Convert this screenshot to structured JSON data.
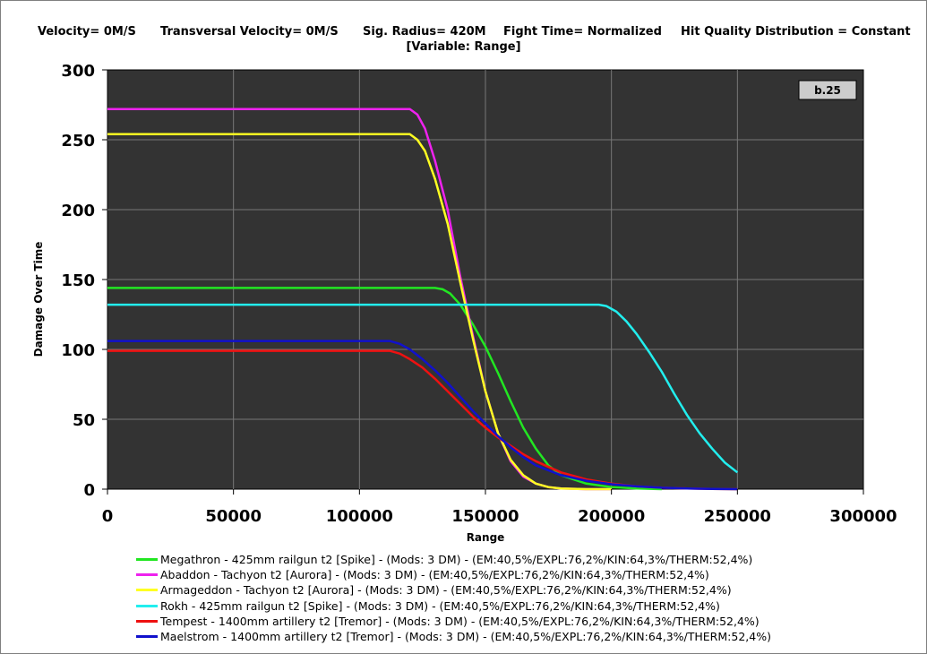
{
  "header": {
    "velocity": "Velocity= 0M/S",
    "transversal_velocity": "Transversal Velocity= 0M/S",
    "sig_radius": "Sig. Radius= 420M",
    "fight_time": "Fight Time= Normalized",
    "hit_quality": "Hit Quality Distribution = Constant",
    "subtitle": "[Variable: Range]"
  },
  "badge": "b.25",
  "chart_data": {
    "type": "line",
    "xlabel": "Range",
    "ylabel": "Damage Over Time",
    "xlim": [
      0,
      300000
    ],
    "ylim": [
      0,
      300
    ],
    "xticks": [
      0,
      50000,
      100000,
      150000,
      200000,
      250000,
      300000
    ],
    "yticks": [
      0,
      50,
      100,
      150,
      200,
      250,
      300
    ],
    "grid": true,
    "legend_position": "bottom",
    "series": [
      {
        "name": "Megathron - 425mm railgun t2 [Spike] - (Mods: 3 DM) - (EM:40,5%/EXPL:76,2%/KIN:64,3%/THERM:52,4%)",
        "color": "#22e622",
        "x": [
          0,
          130000,
          133000,
          136000,
          140000,
          145000,
          150000,
          155000,
          160000,
          165000,
          170000,
          175000,
          180000,
          190000,
          200000,
          210000,
          220000
        ],
        "y": [
          144,
          144,
          143,
          140,
          132,
          118,
          102,
          83,
          63,
          44,
          29,
          17,
          10,
          4,
          1.5,
          0.5,
          0
        ]
      },
      {
        "name": "Abaddon - Tachyon t2 [Aurora] - (Mods: 3 DM) - (EM:40,5%/EXPL:76,2%/KIN:64,3%/THERM:52,4%)",
        "color": "#ee22ee",
        "x": [
          0,
          120000,
          123000,
          126000,
          130000,
          135000,
          140000,
          145000,
          150000,
          155000,
          160000,
          165000,
          170000,
          175000,
          180000,
          190000,
          200000
        ],
        "y": [
          272,
          272,
          268,
          258,
          235,
          200,
          152,
          110,
          70,
          40,
          20,
          9,
          4,
          1.5,
          0.5,
          0,
          0
        ]
      },
      {
        "name": "Armageddon - Tachyon t2 [Aurora] - (Mods: 3 DM) - (EM:40,5%/EXPL:76,2%/KIN:64,3%/THERM:52,4%)",
        "color": "#ffff22",
        "x": [
          0,
          120000,
          123000,
          126000,
          130000,
          135000,
          140000,
          145000,
          150000,
          155000,
          160000,
          165000,
          170000,
          175000,
          180000,
          190000,
          200000
        ],
        "y": [
          254,
          254,
          250,
          242,
          222,
          190,
          148,
          108,
          70,
          40,
          21,
          10,
          4,
          1.5,
          0.5,
          0,
          0
        ]
      },
      {
        "name": "Rokh - 425mm railgun t2 [Spike] - (Mods: 3 DM) - (EM:40,5%/EXPL:76,2%/KIN:64,3%/THERM:52,4%)",
        "color": "#22eeee",
        "x": [
          0,
          195000,
          198000,
          202000,
          206000,
          210000,
          215000,
          220000,
          225000,
          230000,
          235000,
          240000,
          245000,
          250000
        ],
        "y": [
          132,
          132,
          131,
          127,
          120,
          111,
          98,
          84,
          68,
          53,
          40,
          29,
          19,
          12
        ]
      },
      {
        "name": "Tempest - 1400mm artillery t2 [Tremor] - (Mods: 3 DM) - (EM:40,5%/EXPL:76,2%/KIN:64,3%/THERM:52,4%)",
        "color": "#ee1111",
        "x": [
          0,
          112000,
          116000,
          120000,
          125000,
          130000,
          135000,
          140000,
          145000,
          150000,
          155000,
          160000,
          165000,
          170000,
          180000,
          190000,
          200000,
          210000,
          220000,
          230000,
          240000,
          250000
        ],
        "y": [
          99,
          99,
          97,
          93,
          87,
          79,
          70,
          61,
          52,
          44,
          37,
          31,
          25,
          20,
          12,
          7,
          4,
          2,
          1,
          0.5,
          0.2,
          0
        ]
      },
      {
        "name": "Maelstrom - 1400mm artillery t2 [Tremor] - (Mods: 3 DM) - (EM:40,5%/EXPL:76,2%/KIN:64,3%/THERM:52,4%)",
        "color": "#1111cc",
        "x": [
          0,
          112000,
          116000,
          120000,
          125000,
          130000,
          135000,
          140000,
          145000,
          150000,
          155000,
          160000,
          165000,
          170000,
          180000,
          190000,
          200000,
          210000,
          220000,
          230000,
          240000,
          250000
        ],
        "y": [
          106,
          106,
          104,
          100,
          93,
          85,
          76,
          66,
          56,
          47,
          38,
          30,
          23,
          17,
          10,
          6,
          3.5,
          2,
          1,
          0.5,
          0.2,
          0
        ]
      }
    ]
  }
}
